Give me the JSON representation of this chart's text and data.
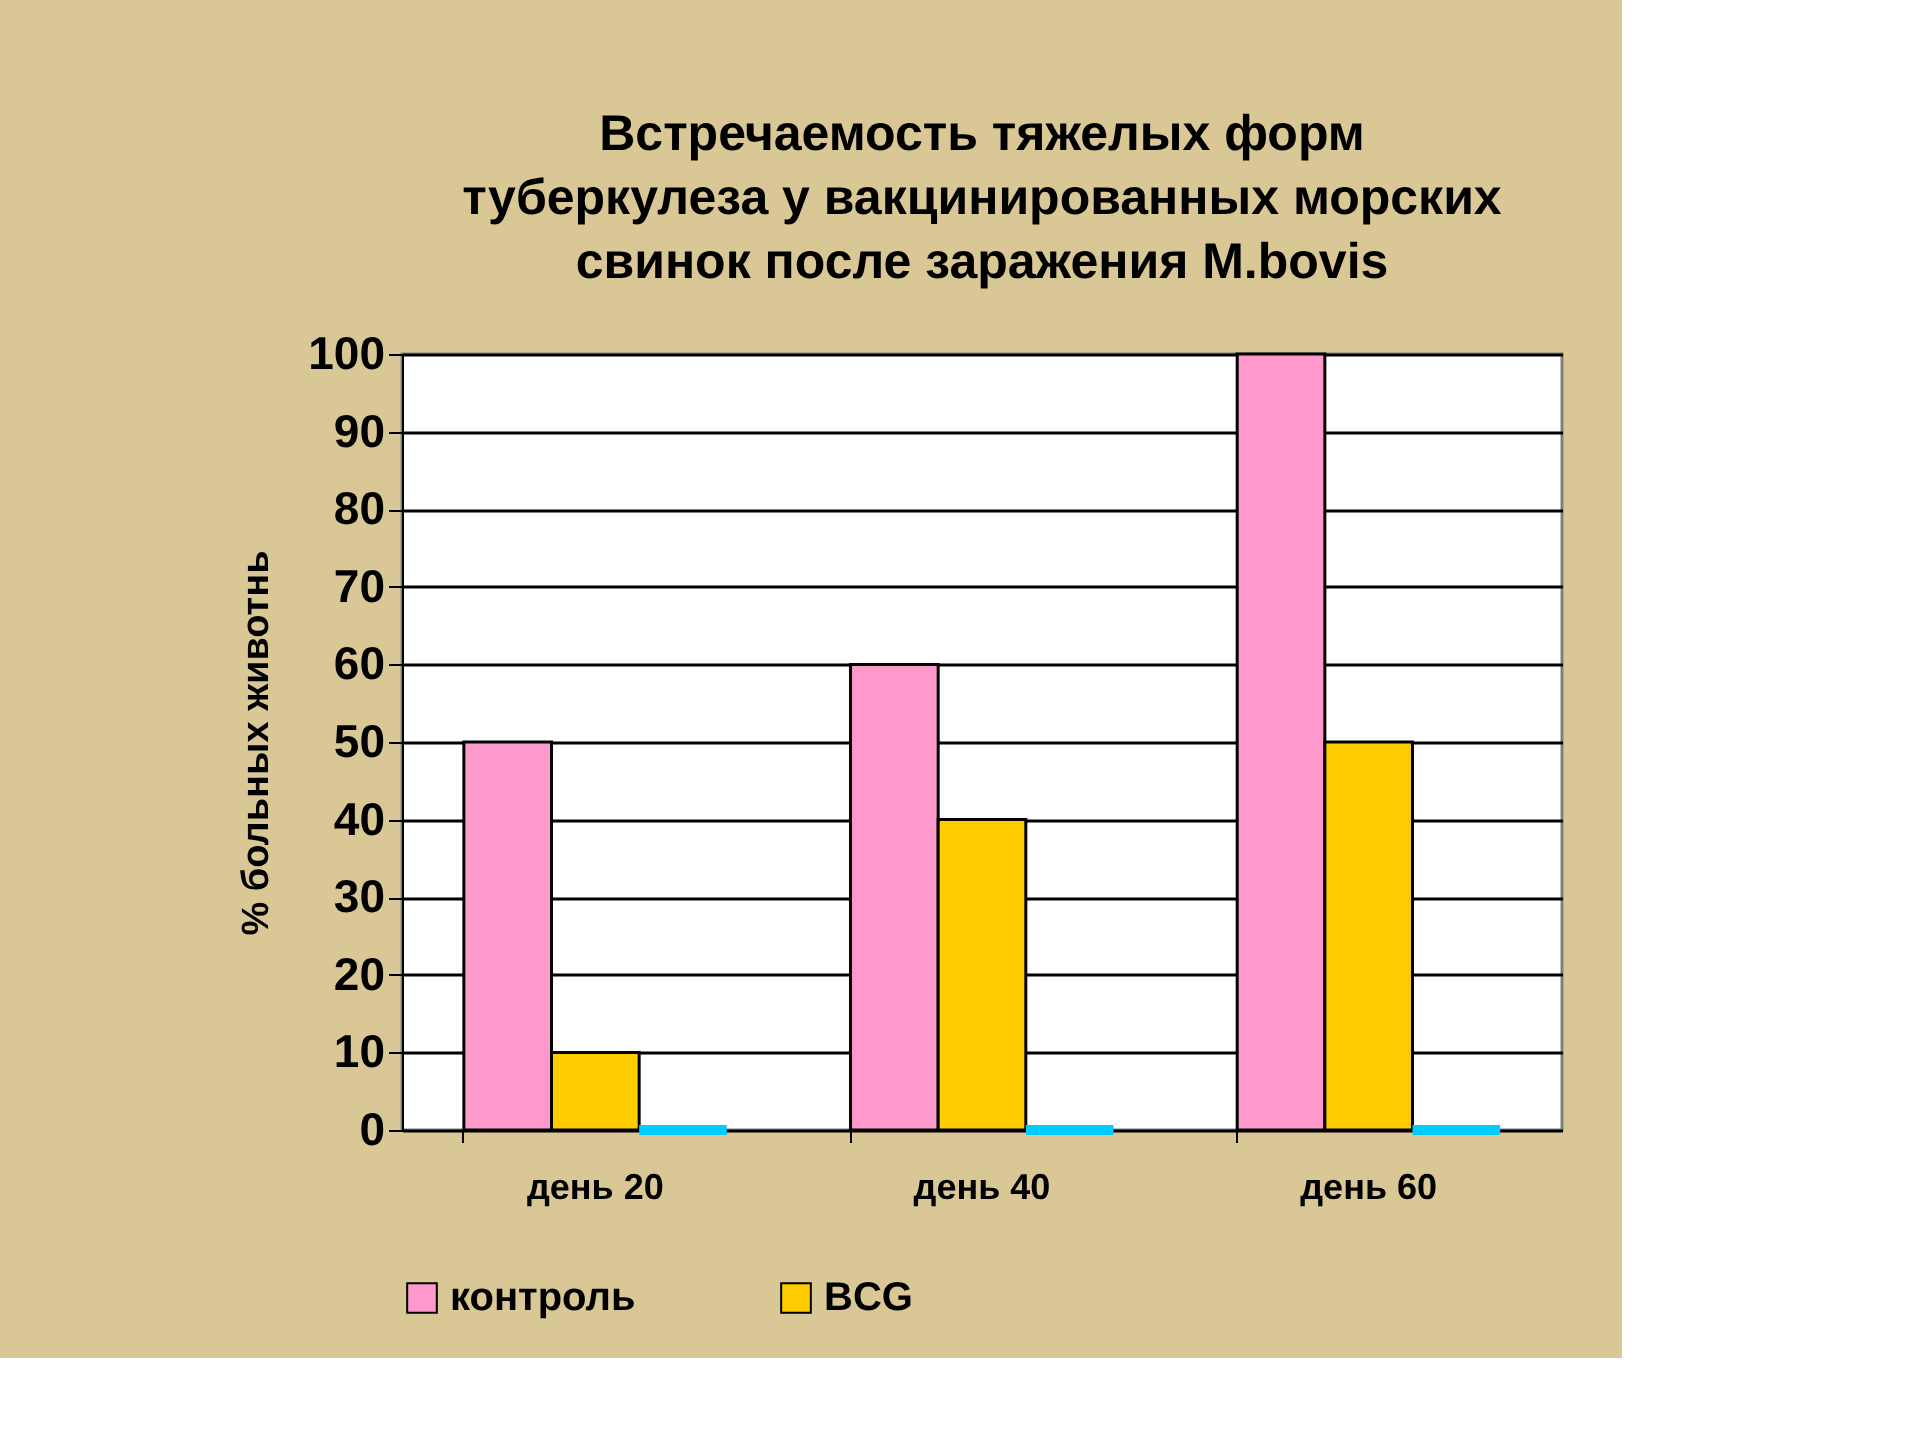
{
  "chart_data": {
    "type": "bar",
    "title": "Встречаемость тяжелых форм\nтуберкулеза у вакцинированных морских\nсвинок после заражения M.bovis",
    "ylabel": "% больных животнь",
    "categories": [
      "день 20",
      "день 40",
      "день 60"
    ],
    "series": [
      {
        "name": "контроль",
        "color": "#ff99cc",
        "values": [
          50,
          60,
          100
        ]
      },
      {
        "name": "BCG",
        "color": "#ffcc00",
        "values": [
          10,
          40,
          50
        ]
      },
      {
        "color": "#00ccff",
        "values": [
          0,
          0,
          0
        ]
      }
    ],
    "ylim": [
      0,
      100
    ],
    "yticks": [
      0,
      10,
      20,
      30,
      40,
      50,
      60,
      70,
      80,
      90,
      100
    ],
    "grid": "y",
    "legend": "bottom"
  }
}
